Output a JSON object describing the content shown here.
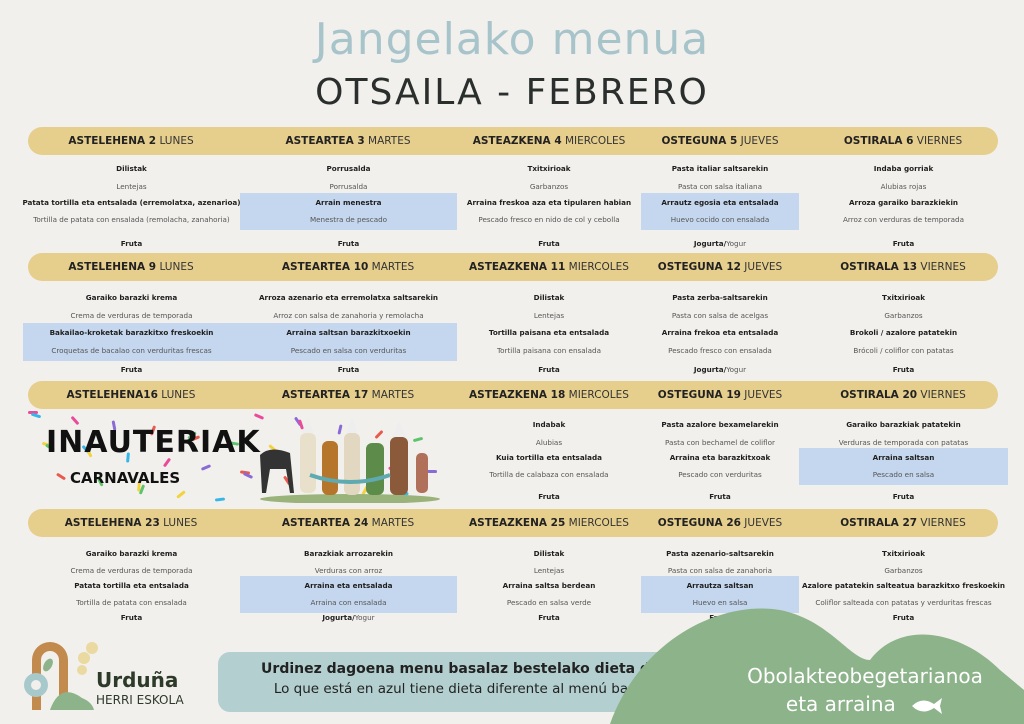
{
  "header": {
    "title": "Jangelako menua",
    "subtitle": "OTSAILA - FEBRERO"
  },
  "colors": {
    "header_bar": "#e6ce8c",
    "highlight_blue": "#c5d7ee",
    "note_box": "#b3cfd0",
    "green": "#8db38a",
    "title_blue": "#a8c4cb"
  },
  "weeks": [
    {
      "days": [
        {
          "eu": "ASTELEHENA 2",
          "es": "LUNES",
          "first_eu": "Dilistak",
          "first_es": "Lentejas",
          "second_eu": "Patata tortilla eta entsalada  (erremolatxa, azenarioa)",
          "second_es": "Tortilla de patata con ensalada (remolacha, zanahoria)",
          "blue": false,
          "dessert_bold": "Fruta",
          "dessert_regular": ""
        },
        {
          "eu": "ASTEARTEA 3",
          "es": "MARTES",
          "first_eu": "Porrusalda",
          "first_es": "Porrusalda",
          "second_eu": "Arrain menestra",
          "second_es": "Menestra de pescado",
          "blue": true,
          "dessert_bold": "Fruta",
          "dessert_regular": ""
        },
        {
          "eu": "ASTEAZKENA 4",
          "es": "MIERCOLES",
          "first_eu": "Txitxirioak",
          "first_es": "Garbanzos",
          "second_eu": "Arraina freskoa aza eta tipularen habian",
          "second_es": "Pescado fresco en nido de col y cebolla",
          "blue": false,
          "dessert_bold": "Fruta",
          "dessert_regular": ""
        },
        {
          "eu": "OSTEGUNA 5",
          "es": "JUEVES",
          "first_eu": "Pasta italiar saltsarekin",
          "first_es": "Pasta con salsa italiana",
          "second_eu": "Arrautz egosia eta entsalada",
          "second_es": "Huevo cocido con ensalada",
          "blue": true,
          "dessert_bold": "Jogurta/",
          "dessert_regular": "Yogur"
        },
        {
          "eu": "OSTIRALA 6",
          "es": "VIERNES",
          "first_eu": "Indaba gorriak",
          "first_es": "Alubias rojas",
          "second_eu": "Arroza garaiko barazkiekin",
          "second_es": "Arroz con verduras de temporada",
          "blue": false,
          "dessert_bold": "Fruta",
          "dessert_regular": ""
        }
      ]
    },
    {
      "days": [
        {
          "eu": "ASTELEHENA 9",
          "es": "LUNES",
          "first_eu": "Garaiko barazki krema",
          "first_es": "Crema de verduras de temporada",
          "second_eu": "Bakailao-kroketak barazkitxo freskoekin",
          "second_es": "Croquetas de bacalao con verduritas frescas",
          "blue": true,
          "dessert_bold": "Fruta",
          "dessert_regular": ""
        },
        {
          "eu": "ASTEARTEA 10",
          "es": "MARTES",
          "first_eu": "Arroza azenario eta erremolatxa saltsarekin",
          "first_es": "Arroz con salsa de zanahoria y remolacha",
          "second_eu": "Arraina saltsan barazkitxoekin",
          "second_es": "Pescado en salsa con verduritas",
          "blue": true,
          "dessert_bold": "Fruta",
          "dessert_regular": ""
        },
        {
          "eu": "ASTEAZKENA 11",
          "es": "MIERCOLES",
          "first_eu": "Dilistak",
          "first_es": "Lentejas",
          "second_eu": "Tortilla paisana eta entsalada",
          "second_es": "Tortilla paisana con ensalada",
          "blue": false,
          "dessert_bold": "Fruta",
          "dessert_regular": ""
        },
        {
          "eu": "OSTEGUNA 12",
          "es": "JUEVES",
          "first_eu": "Pasta zerba-saltsarekin",
          "first_es": "Pasta con salsa de acelgas",
          "second_eu": "Arraina frekoa eta entsalada",
          "second_es": "Pescado fresco con ensalada",
          "blue": false,
          "dessert_bold": "Jogurta/",
          "dessert_regular": "Yogur"
        },
        {
          "eu": "OSTIRALA 13",
          "es": "VIERNES",
          "first_eu": "Txitxirioak",
          "first_es": "Garbanzos",
          "second_eu": "Brokoli / azalore patatekin",
          "second_es": "Brócoli / coliflor con patatas",
          "blue": false,
          "dessert_bold": "Fruta",
          "dessert_regular": ""
        }
      ]
    },
    {
      "holiday": {
        "title": "INAUTERIAK",
        "subtitle": "CARNAVALES"
      },
      "days": [
        {
          "eu": "ASTELEHENA16",
          "es": "LUNES",
          "holiday": true
        },
        {
          "eu": "ASTEARTEA 17",
          "es": "MARTES",
          "holiday": true
        },
        {
          "eu": "ASTEAZKENA 18",
          "es": "MIERCOLES",
          "first_eu": "Indabak",
          "first_es": "Alubias",
          "second_eu": "Kuia  tortilla eta entsalada",
          "second_es": "Tortilla de calabaza con ensalada",
          "blue": false,
          "dessert_bold": "Fruta",
          "dessert_regular": ""
        },
        {
          "eu": "OSTEGUNA 19",
          "es": "JUEVES",
          "first_eu": "Pasta azalore bexamelarekin",
          "first_es": "Pasta con bechamel de coliflor",
          "second_eu": "Arraina eta barazkitxoak",
          "second_es": "Pescado con verduritas",
          "blue": false,
          "dessert_bold": "Fruta",
          "dessert_regular": ""
        },
        {
          "eu": "OSTIRALA 20",
          "es": "VIERNES",
          "first_eu": "Garaiko barazkiak patatekin",
          "first_es": "Verduras de temporada con patatas",
          "second_eu": "Arraina saltsan",
          "second_es": "Pescado en salsa",
          "blue": true,
          "dessert_bold": "Fruta",
          "dessert_regular": ""
        }
      ]
    },
    {
      "days": [
        {
          "eu": "ASTELEHENA 23",
          "es": "LUNES",
          "first_eu": "Garaiko barazki krema",
          "first_es": "Crema de verduras de temporada",
          "second_eu": "Patata tortilla eta entsalada",
          "second_es": "Tortilla de patata con ensalada",
          "blue": false,
          "dessert_bold": "Fruta",
          "dessert_regular": ""
        },
        {
          "eu": "ASTEARTEA 24",
          "es": "MARTES",
          "first_eu": "Barazkiak arrozarekin",
          "first_es": "Verduras con arroz",
          "second_eu": "Arraina eta entsalada",
          "second_es": "Arraina con ensalada",
          "blue": true,
          "dessert_bold": "Jogurta/",
          "dessert_regular": "Yogur"
        },
        {
          "eu": "ASTEAZKENA 25",
          "es": "MIERCOLES",
          "first_eu": "Dilistak",
          "first_es": "Lentejas",
          "second_eu": "Arraina saltsa berdean",
          "second_es": "Pescado en salsa verde",
          "blue": false,
          "dessert_bold": "Fruta",
          "dessert_regular": ""
        },
        {
          "eu": "OSTEGUNA 26",
          "es": "JUEVES",
          "first_eu": "Pasta azenario-saltsarekin",
          "first_es": "Pasta con salsa de zanahoria",
          "second_eu": "Arrautza saltsan",
          "second_es": "Huevo en salsa",
          "blue": true,
          "dessert_bold": "Fruta",
          "dessert_regular": ""
        },
        {
          "eu": "OSTIRALA 27",
          "es": "VIERNES",
          "first_eu": "Txitxirioak",
          "first_es": "Garbanzos",
          "second_eu": "Azalore patatekin salteatua barazkitxo freskoekin",
          "second_es": "Coliflor salteada con patatas y verduritas frescas",
          "blue": false,
          "dessert_bold": "Fruta",
          "dessert_regular": ""
        }
      ]
    }
  ],
  "footer": {
    "note_eu": "Urdinez dagoena menu basalaz bestelako dieta du",
    "note_es": "Lo que está en azul tiene dieta diferente al menú basal",
    "veg_line1": "Obolakteobegetarianoa",
    "veg_line2": "eta arraina",
    "veg_icon": "fish-icon",
    "logo_name": "Urduña",
    "logo_sub": "HERRI ESKOLA"
  }
}
